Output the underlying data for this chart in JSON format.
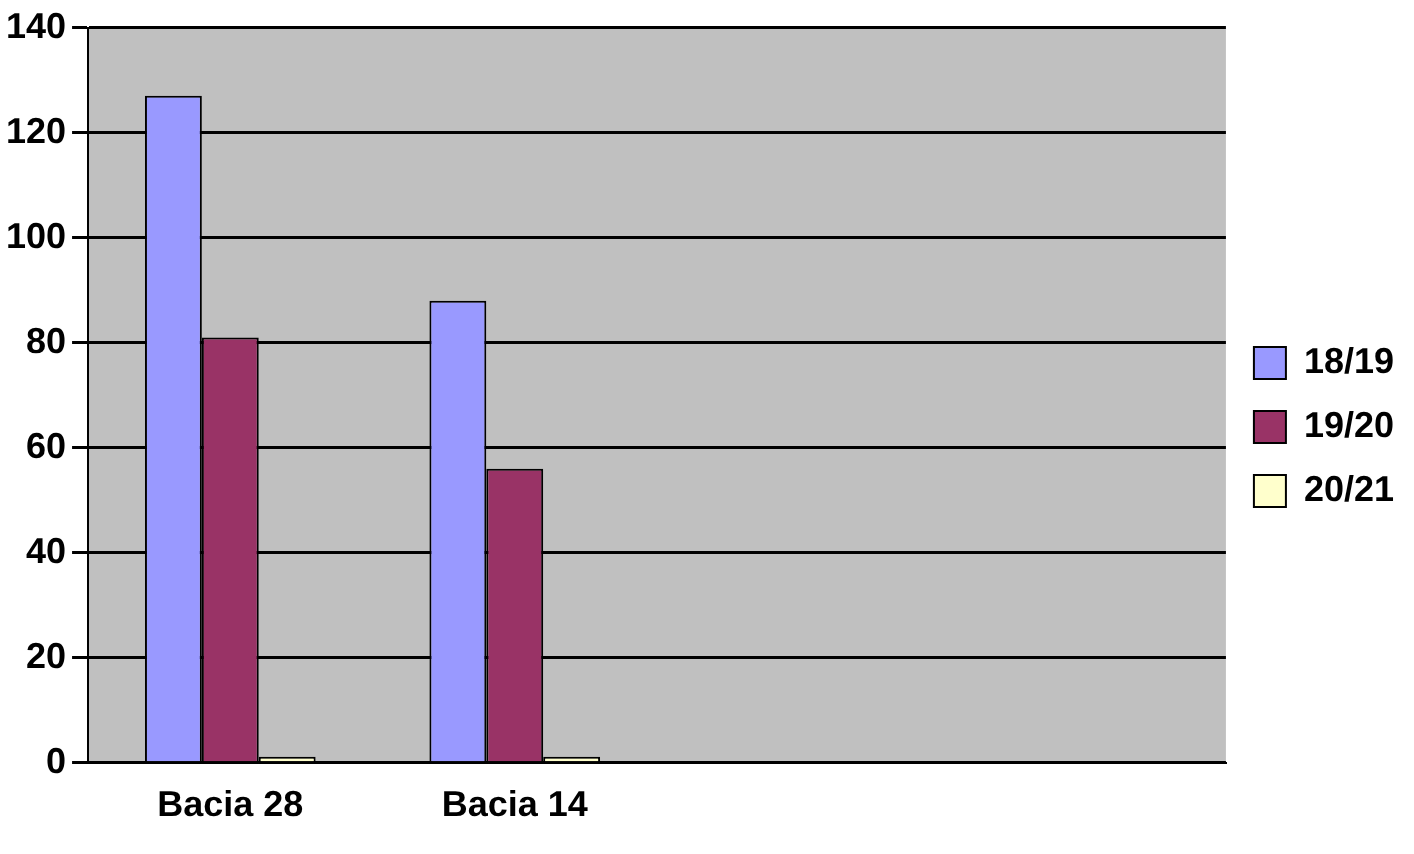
{
  "chart_data": {
    "type": "bar",
    "categories": [
      "Bacia 28",
      "Bacia 14",
      null,
      null
    ],
    "series": [
      {
        "name": "18/19",
        "color": "#9999ff",
        "values": [
          127,
          88,
          null,
          null
        ]
      },
      {
        "name": "19/20",
        "color": "#993366",
        "values": [
          81,
          56,
          null,
          null
        ]
      },
      {
        "name": "20/21",
        "color": "#ffffcc",
        "values": [
          0,
          0,
          null,
          null
        ]
      }
    ],
    "ylim": [
      0,
      140
    ],
    "yticks": [
      0,
      20,
      40,
      60,
      80,
      100,
      120,
      140
    ],
    "grid": "y",
    "legend": "right"
  }
}
